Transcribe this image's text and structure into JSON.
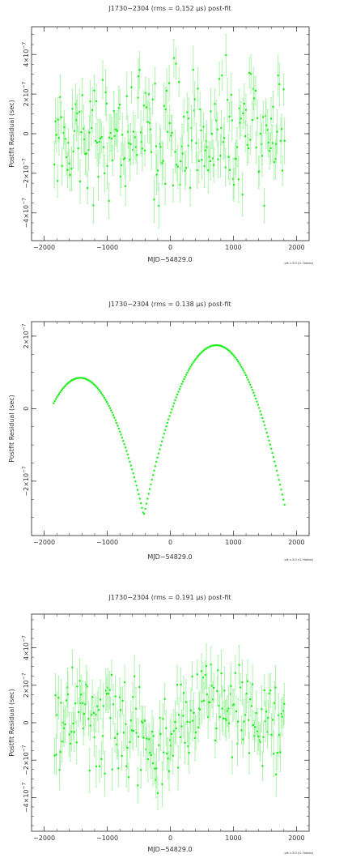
{
  "colors": {
    "points": "#22ee22",
    "errorbars": "#a6f2a6",
    "frame": "#222222",
    "text": "#333333"
  },
  "chart_data": [
    {
      "type": "scatter",
      "title": "J1730−2304 (rms = 0.152 μs) post-fit",
      "xlabel": "MJD−54829.0",
      "ylabel": "Postfit Residual (sec)",
      "xlim": [
        -2200,
        2200
      ],
      "ylim": [
        -5.4e-07,
        5.4e-07
      ],
      "xtick_labels": [
        "−2000",
        "−1000",
        "0",
        "1000",
        "2000"
      ],
      "ytick_labels": [
        {
          "sign": "−",
          "mant": "4",
          "exp": "−7"
        },
        {
          "sign": "−",
          "mant": "2",
          "exp": "−7"
        },
        {
          "sign": "",
          "mant": "0",
          "exp": ""
        },
        {
          "sign": "",
          "mant": "2",
          "exp": "−7"
        },
        {
          "sign": "",
          "mant": "4",
          "exp": "−7"
        }
      ],
      "credit": "plk v.3.0 (G. Hobbs)",
      "x_range": [
        -1840,
        1810
      ],
      "n_points": 230,
      "y_spread": 1.5e-07,
      "error_bar": 9.5e-08,
      "trend": "flat",
      "points_desc": "white-noise residuals about zero with error bars"
    },
    {
      "type": "scatter",
      "title": "J1730−2304 (rms = 0.138 μs) post-fit",
      "xlabel": "MJD−54829.0",
      "ylabel": "Postfit Residual (sec)",
      "xlim": [
        -2200,
        2200
      ],
      "ylim": [
        -3.5e-07,
        2.4e-07
      ],
      "xtick_labels": [
        "−2000",
        "−1000",
        "0",
        "1000",
        "2000"
      ],
      "ytick_labels": [
        {
          "sign": "−",
          "mant": "2",
          "exp": "−7"
        },
        {
          "sign": "",
          "mant": "0",
          "exp": ""
        },
        {
          "sign": "",
          "mant": "2",
          "exp": "−7"
        }
      ],
      "credit": "plk v.3.0 (G. Hobbs)",
      "x_range": [
        -1850,
        1810
      ],
      "n_points": 210,
      "trend": "two_arches",
      "curve": {
        "left_peak": [
          -1430,
          8.5e-08
        ],
        "cusp": [
          -420,
          -2.95e-07
        ],
        "right_peak": [
          730,
          1.75e-07
        ],
        "start_y": 1.5e-08,
        "end_y": -2.65e-07
      }
    },
    {
      "type": "scatter",
      "title": "J1730−2304 (rms = 0.191 μs) post-fit",
      "xlabel": "MJD−54829.0",
      "ylabel": "Postfit Residual (sec)",
      "xlim": [
        -2200,
        2200
      ],
      "ylim": [
        -5.8e-07,
        5.8e-07
      ],
      "xtick_labels": [
        "−2000",
        "−1000",
        "0",
        "1000",
        "2000"
      ],
      "ytick_labels": [
        {
          "sign": "−",
          "mant": "4",
          "exp": "−7"
        },
        {
          "sign": "−",
          "mant": "2",
          "exp": "−7"
        },
        {
          "sign": "",
          "mant": "0",
          "exp": ""
        },
        {
          "sign": "",
          "mant": "2",
          "exp": "−7"
        },
        {
          "sign": "",
          "mant": "4",
          "exp": "−7"
        }
      ],
      "credit": "plk v.3.0 (G. Hobbs)",
      "x_range": [
        -1840,
        1810
      ],
      "n_points": 230,
      "y_spread": 1.3e-07,
      "error_bar": 1e-07,
      "trend": "dip_then_rise",
      "points_desc": "residuals with a dip near −300 and a bump near 700, with error bars"
    }
  ]
}
